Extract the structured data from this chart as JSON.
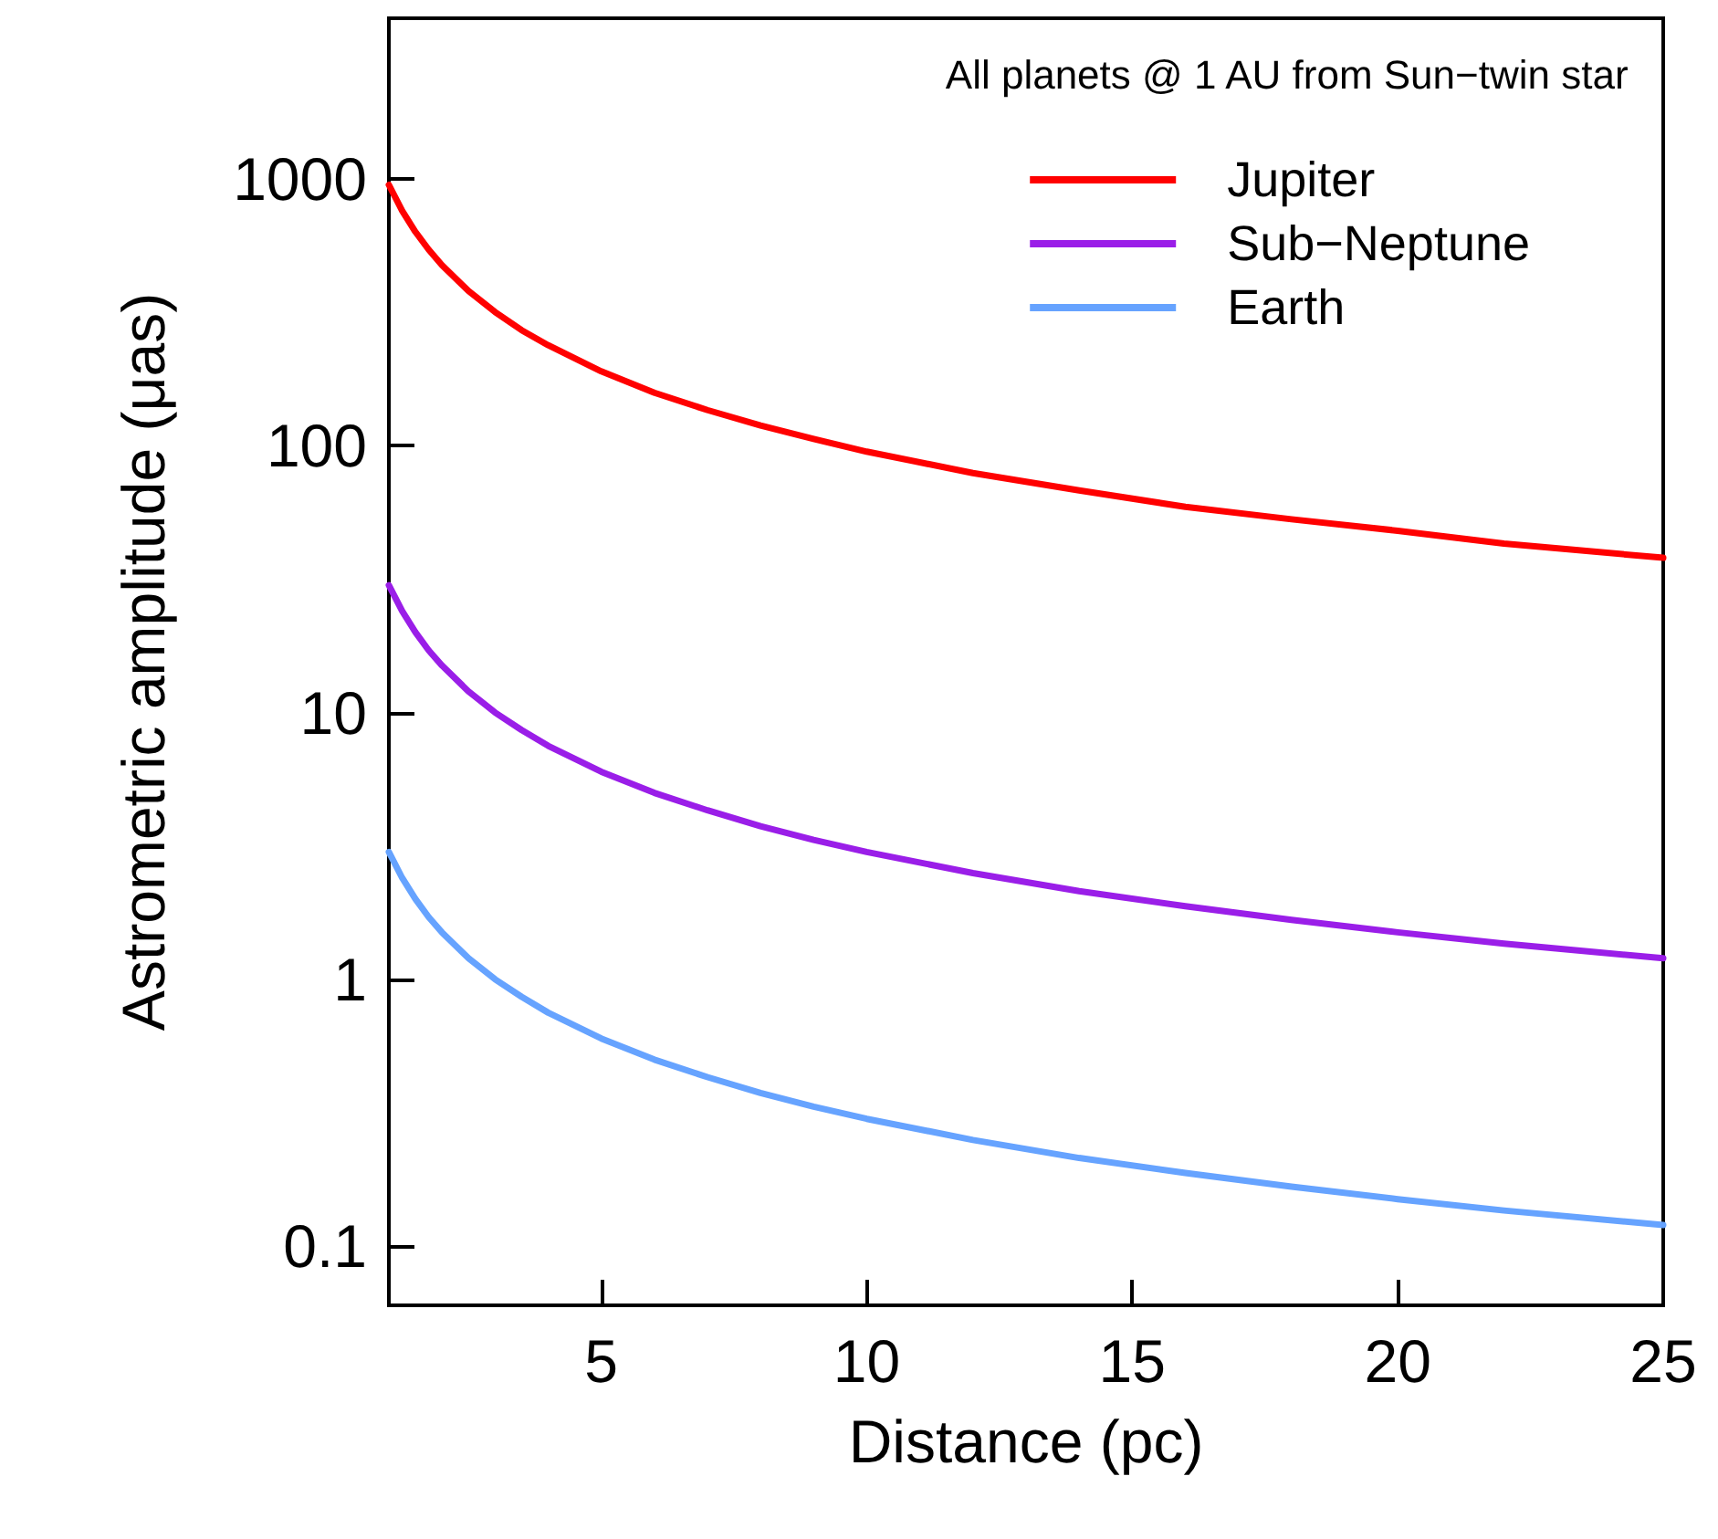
{
  "chart_data": {
    "type": "line",
    "xlabel": "Distance (pc)",
    "ylabel": "Astrometric amplitude (μas)",
    "annotations": [
      "All planets @ 1 AU from Sun−twin star"
    ],
    "x": [
      1,
      1.25,
      1.5,
      1.75,
      2,
      2.5,
      3,
      3.5,
      4,
      5,
      6,
      7,
      8,
      9,
      10,
      12,
      14,
      16,
      18,
      20,
      22,
      25
    ],
    "series": [
      {
        "name": "Jupiter",
        "color": "#ff0000",
        "values": [
          950,
          760,
          633,
          543,
          475,
          380,
          317,
          271,
          238,
          190,
          158,
          136,
          119,
          106,
          95,
          79,
          68,
          59,
          53,
          48,
          43,
          38
        ]
      },
      {
        "name": "Sub−Neptune",
        "color": "#9a1ee8",
        "values": [
          30,
          24,
          20,
          17.1,
          15,
          12,
          10,
          8.6,
          7.5,
          6,
          5,
          4.3,
          3.75,
          3.33,
          3,
          2.5,
          2.14,
          1.88,
          1.67,
          1.5,
          1.36,
          1.2
        ]
      },
      {
        "name": "Earth",
        "color": "#66a3ff",
        "values": [
          3,
          2.4,
          2,
          1.71,
          1.5,
          1.2,
          1,
          0.86,
          0.75,
          0.6,
          0.5,
          0.43,
          0.375,
          0.333,
          0.3,
          0.25,
          0.214,
          0.188,
          0.167,
          0.15,
          0.136,
          0.12
        ]
      }
    ],
    "xlim": [
      1,
      25
    ],
    "xticks": [
      5,
      10,
      15,
      20,
      25
    ],
    "ylim": [
      0.06,
      4000
    ],
    "yticks": [
      0.1,
      1,
      10,
      100,
      1000
    ],
    "log": "y",
    "grid": false,
    "legend": "top right",
    "marker": "none",
    "line_style": "solid"
  }
}
